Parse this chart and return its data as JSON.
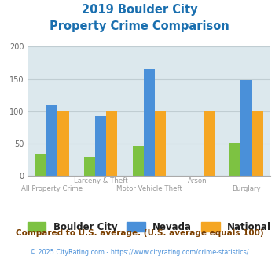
{
  "title_line1": "2019 Boulder City",
  "title_line2": "Property Crime Comparison",
  "title_color": "#1a6faf",
  "categories": [
    "All Property Crime",
    "Larceny & Theft",
    "Motor Vehicle Theft",
    "Arson",
    "Burglary"
  ],
  "top_labels": [
    "",
    "Larceny & Theft",
    "",
    "Arson",
    ""
  ],
  "bottom_labels": [
    "All Property Crime",
    "",
    "Motor Vehicle Theft",
    "",
    "Burglary"
  ],
  "boulder_city": [
    35,
    30,
    47,
    0,
    51
  ],
  "nevada": [
    110,
    93,
    165,
    0,
    148
  ],
  "national": [
    100,
    100,
    100,
    100,
    100
  ],
  "bar_colors": {
    "boulder_city": "#7dc242",
    "nevada": "#4a90d9",
    "national": "#f5a623"
  },
  "ylim": [
    0,
    200
  ],
  "yticks": [
    0,
    50,
    100,
    150,
    200
  ],
  "grid_color": "#c0cdd2",
  "plot_bg": "#dce8ed",
  "legend_labels": [
    "Boulder City",
    "Nevada",
    "National"
  ],
  "footnote1": "Compared to U.S. average. (U.S. average equals 100)",
  "footnote1_color": "#7b3f00",
  "footnote2": "© 2025 CityRating.com - https://www.cityrating.com/crime-statistics/",
  "footnote2_color": "#4a90d9"
}
